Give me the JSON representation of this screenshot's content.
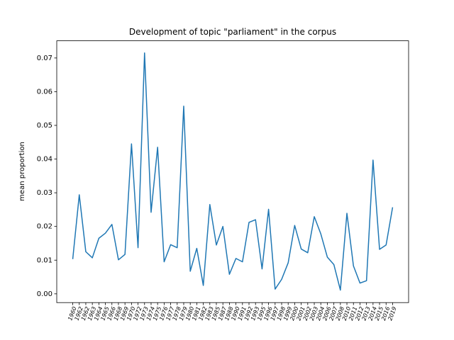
{
  "chart_data": {
    "type": "line",
    "title": "Development of topic \"parliament\" in the corpus",
    "ylabel": "mean proportion",
    "categories": [
      "1960",
      "1962",
      "1962",
      "1963",
      "1964",
      "1965",
      "1966",
      "1968",
      "1969",
      "1970",
      "1972",
      "1973",
      "1974",
      "1975",
      "1976",
      "1977",
      "1978",
      "1979",
      "1980",
      "1981",
      "1982",
      "1983",
      "1985",
      "1987",
      "1988",
      "1990",
      "1991",
      "1992",
      "1993",
      "1995",
      "1996",
      "1997",
      "1998",
      "1999",
      "2000",
      "2001",
      "2002",
      "2003",
      "2004",
      "2006",
      "2007",
      "2008",
      "2010",
      "2011",
      "2012",
      "2013",
      "2014",
      "2015",
      "2016",
      "2019"
    ],
    "series": [
      {
        "name": "parliament",
        "color": "#1f77b4",
        "values": [
          0.0103,
          0.0294,
          0.0125,
          0.0107,
          0.0165,
          0.018,
          0.0206,
          0.0101,
          0.0117,
          0.0445,
          0.0137,
          0.0715,
          0.0242,
          0.0435,
          0.0095,
          0.0146,
          0.0137,
          0.0557,
          0.0067,
          0.0135,
          0.0025,
          0.0265,
          0.0145,
          0.02,
          0.0058,
          0.0105,
          0.0095,
          0.0212,
          0.022,
          0.0074,
          0.0251,
          0.0014,
          0.0043,
          0.0092,
          0.0203,
          0.0133,
          0.0122,
          0.0229,
          0.0178,
          0.0109,
          0.0087,
          0.0011,
          0.0239,
          0.0083,
          0.0032,
          0.0039,
          0.0397,
          0.0132,
          0.0145,
          0.0257
        ]
      }
    ],
    "ylim": [
      -0.0026,
      0.0751
    ],
    "yticks": [
      {
        "value": 0,
        "label": "0.00"
      },
      {
        "value": 0.01,
        "label": "0.01"
      },
      {
        "value": 0.02,
        "label": "0.02"
      },
      {
        "value": 0.03,
        "label": "0.03"
      },
      {
        "value": 0.04,
        "label": "0.04"
      },
      {
        "value": 0.05,
        "label": "0.05"
      },
      {
        "value": 0.06,
        "label": "0.06"
      },
      {
        "value": 0.07,
        "label": "0.07"
      }
    ],
    "grid": false
  }
}
